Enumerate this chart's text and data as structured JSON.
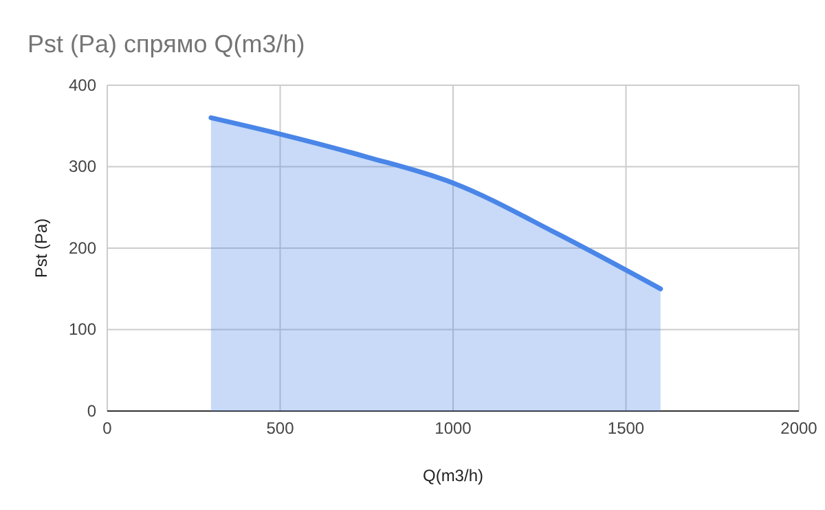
{
  "chart_data": {
    "type": "area",
    "title": "Pst (Pa) спрямо Q(m3/h)",
    "xlabel": "Q(m3/h)",
    "ylabel": "Pst (Pa)",
    "x": [
      300,
      500,
      750,
      1000,
      1300,
      1600
    ],
    "series": [
      {
        "color": "#4a86e8",
        "values": [
          360,
          340,
          312,
          280,
          218,
          150
        ]
      }
    ],
    "xlim": [
      0,
      2000
    ],
    "xticks": [
      0,
      500,
      1000,
      1500,
      2000
    ],
    "ylim": [
      0,
      400
    ],
    "yticks": [
      0,
      100,
      200,
      300,
      400
    ],
    "grid": true
  }
}
